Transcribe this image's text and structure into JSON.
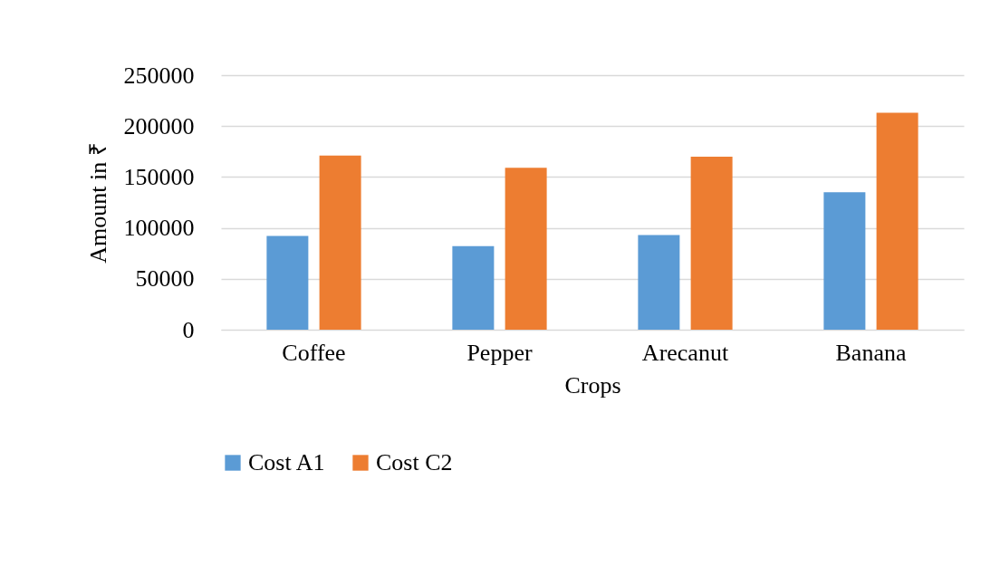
{
  "chart_data": {
    "type": "bar",
    "xlabel": "Crops",
    "ylabel": "Amount in ₹",
    "categories": [
      "Coffee",
      "Pepper",
      "Arecanut",
      "Banana"
    ],
    "series": [
      {
        "name": "Cost A1",
        "color": "#5b9bd5",
        "values": [
          92000,
          82000,
          93000,
          135000
        ]
      },
      {
        "name": "Cost C2",
        "color": "#ed7d31",
        "values": [
          171000,
          159000,
          170000,
          213000
        ]
      }
    ],
    "ylim": [
      0,
      250000
    ],
    "yticks": [
      0,
      50000,
      100000,
      150000,
      200000,
      250000
    ],
    "grid": "y",
    "legend": "bottom"
  }
}
